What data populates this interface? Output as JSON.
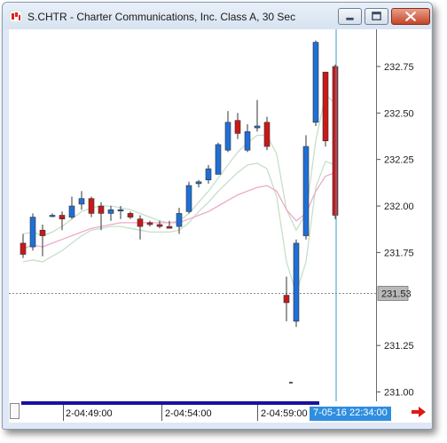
{
  "window": {
    "title": "S.CHTR - Charter Communications, Inc. Class A, 30 Sec",
    "icons": {
      "app": "chart-app-icon",
      "minimize": "minimize-icon",
      "maximize": "maximize-icon",
      "close": "close-icon"
    }
  },
  "colors": {
    "up_candle": "#1f6fd6",
    "down_candle": "#c91818",
    "fast_ma": "#c5e0c8",
    "slow_ma": "#f0a8c8",
    "last_price_tag": "#b8b8b8",
    "crosshair": "#3d9bc6",
    "time_badge": "#2f8ee0",
    "scrollbar": "#1a10a0"
  },
  "price_axis": {
    "labels": [
      "232.75",
      "232.50",
      "232.25",
      "232.00",
      "231.75",
      "231.25",
      "231.00"
    ],
    "last_price": "231.53"
  },
  "time_axis": {
    "labels": [
      "2-04:49:00",
      "2-04:54:00",
      "2-04:59:00"
    ],
    "cursor_time": "7-05-16 22:34:00",
    "nav_icon": "right-arrow-icon"
  },
  "chart_data": {
    "type": "candlestick",
    "symbol": "S.CHTR",
    "interval": "30 Sec",
    "ylim": [
      230.95,
      232.95
    ],
    "yticks": [
      232.75,
      232.5,
      232.25,
      232.0,
      231.75,
      231.25,
      231.0
    ],
    "last_price": 231.53,
    "candles": [
      {
        "o": 231.8,
        "h": 231.85,
        "l": 231.72,
        "c": 231.74,
        "dir": "down"
      },
      {
        "o": 231.78,
        "h": 231.96,
        "l": 231.76,
        "c": 231.94,
        "dir": "up"
      },
      {
        "o": 231.87,
        "h": 231.9,
        "l": 231.73,
        "c": 231.84,
        "dir": "down"
      },
      {
        "o": 231.95,
        "h": 231.96,
        "l": 231.94,
        "c": 231.95,
        "dir": "up"
      },
      {
        "o": 231.95,
        "h": 231.97,
        "l": 231.87,
        "c": 231.93,
        "dir": "down"
      },
      {
        "o": 231.94,
        "h": 232.05,
        "l": 231.93,
        "c": 232.0,
        "dir": "up"
      },
      {
        "o": 232.01,
        "h": 232.08,
        "l": 231.98,
        "c": 232.04,
        "dir": "up"
      },
      {
        "o": 232.04,
        "h": 232.05,
        "l": 231.94,
        "c": 231.96,
        "dir": "down"
      },
      {
        "o": 232.0,
        "h": 232.02,
        "l": 231.87,
        "c": 231.96,
        "dir": "down"
      },
      {
        "o": 231.96,
        "h": 232.0,
        "l": 231.92,
        "c": 231.98,
        "dir": "up"
      },
      {
        "o": 231.98,
        "h": 232.0,
        "l": 231.93,
        "c": 231.98,
        "dir": "up"
      },
      {
        "o": 231.96,
        "h": 231.97,
        "l": 231.93,
        "c": 231.94,
        "dir": "down"
      },
      {
        "o": 231.93,
        "h": 231.95,
        "l": 231.82,
        "c": 231.89,
        "dir": "down"
      },
      {
        "o": 231.91,
        "h": 231.92,
        "l": 231.89,
        "c": 231.9,
        "dir": "down"
      },
      {
        "o": 231.9,
        "h": 231.92,
        "l": 231.88,
        "c": 231.89,
        "dir": "down"
      },
      {
        "o": 231.89,
        "h": 231.92,
        "l": 231.88,
        "c": 231.88,
        "dir": "down"
      },
      {
        "o": 231.89,
        "h": 231.99,
        "l": 231.85,
        "c": 231.96,
        "dir": "up"
      },
      {
        "o": 231.97,
        "h": 232.13,
        "l": 231.96,
        "c": 232.11,
        "dir": "up"
      },
      {
        "o": 232.12,
        "h": 232.14,
        "l": 232.1,
        "c": 232.13,
        "dir": "up"
      },
      {
        "o": 232.14,
        "h": 232.22,
        "l": 232.12,
        "c": 232.2,
        "dir": "up"
      },
      {
        "o": 232.17,
        "h": 232.34,
        "l": 232.17,
        "c": 232.33,
        "dir": "up"
      },
      {
        "o": 232.3,
        "h": 232.51,
        "l": 232.29,
        "c": 232.45,
        "dir": "up"
      },
      {
        "o": 232.46,
        "h": 232.5,
        "l": 232.36,
        "c": 232.39,
        "dir": "down"
      },
      {
        "o": 232.3,
        "h": 232.44,
        "l": 232.29,
        "c": 232.4,
        "dir": "up"
      },
      {
        "o": 232.42,
        "h": 232.57,
        "l": 232.4,
        "c": 232.43,
        "dir": "up"
      },
      {
        "o": 232.45,
        "h": 232.48,
        "l": 232.3,
        "c": 232.32,
        "dir": "down"
      },
      null,
      {
        "o": 231.52,
        "h": 231.62,
        "l": 231.38,
        "c": 231.48,
        "dir": "down"
      },
      {
        "o": 231.38,
        "h": 231.82,
        "l": 231.35,
        "c": 231.8,
        "dir": "up"
      },
      {
        "o": 231.84,
        "h": 232.38,
        "l": 231.82,
        "c": 232.32,
        "dir": "up"
      },
      {
        "o": 232.45,
        "h": 232.89,
        "l": 232.43,
        "c": 232.88,
        "dir": "up"
      },
      {
        "o": 232.72,
        "h": 232.72,
        "l": 232.32,
        "c": 232.35,
        "dir": "down"
      },
      {
        "o": 232.75,
        "h": 232.76,
        "l": 231.93,
        "c": 231.95,
        "dir": "down"
      }
    ],
    "fast_ma": [
      231.85,
      231.86,
      231.84,
      231.86,
      231.89,
      231.93,
      231.97,
      231.99,
      232.0,
      232.0,
      231.99,
      231.98,
      231.96,
      231.94,
      231.92,
      231.91,
      231.92,
      231.96,
      232.02,
      232.08,
      232.15,
      232.22,
      232.29,
      232.34,
      232.38,
      232.38,
      232.28,
      231.98,
      231.87,
      231.96,
      232.35,
      232.6,
      232.55
    ],
    "slow_ma": [
      231.77,
      231.79,
      231.78,
      231.8,
      231.82,
      231.84,
      231.86,
      231.88,
      231.89,
      231.9,
      231.91,
      231.91,
      231.91,
      231.91,
      231.91,
      231.91,
      231.91,
      231.93,
      231.95,
      231.97,
      232.0,
      232.03,
      232.06,
      232.08,
      232.1,
      232.11,
      232.08,
      231.98,
      231.92,
      231.96,
      232.08,
      232.16,
      232.18
    ],
    "lower_band": [
      231.7,
      231.71,
      231.7,
      231.73,
      231.76,
      231.8,
      231.84,
      231.87,
      231.88,
      231.89,
      231.89,
      231.88,
      231.87,
      231.86,
      231.86,
      231.86,
      231.87,
      231.91,
      231.97,
      232.02,
      232.08,
      232.13,
      232.18,
      232.22,
      232.23,
      232.2,
      232.05,
      231.7,
      231.53,
      231.7,
      232.1,
      232.24,
      232.22
    ],
    "tick_marker": 231.05,
    "last_index": 32
  }
}
